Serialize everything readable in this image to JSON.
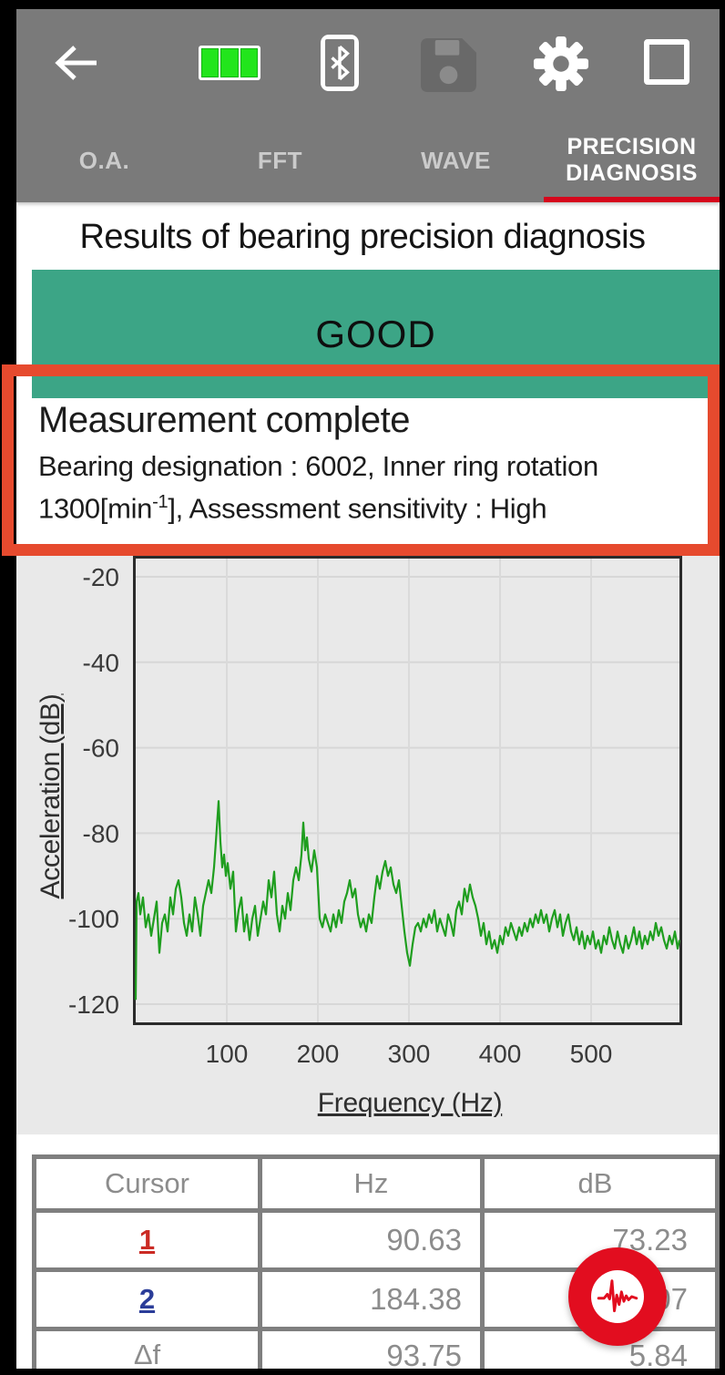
{
  "colors": {
    "toolbar": "#7a7a7a",
    "banner_green": "#3ca586",
    "annotation_red": "#e64a2e",
    "tab_underline": "#d6071c",
    "fab_red": "#e20d1f",
    "cursor1": "#cb2b24",
    "cursor2": "#2b3d99",
    "line_green": "#1f9e1f",
    "battery_green": "#22e51c"
  },
  "toolbar": {
    "icons": [
      "back-arrow",
      "battery-full",
      "bluetooth-connected",
      "save-disabled",
      "settings-gear",
      "square-outline"
    ]
  },
  "tabs": {
    "items": [
      {
        "label": "O.A.",
        "active": false
      },
      {
        "label": "FFT",
        "active": false
      },
      {
        "label": "WAVE",
        "active": false
      },
      {
        "label": "PRECISION\nDIAGNOSIS",
        "active": true
      }
    ]
  },
  "page_title": "Results of bearing precision diagnosis",
  "status_banner": {
    "label": "GOOD"
  },
  "measurement": {
    "title": "Measurement complete",
    "line1": "Bearing designation : 6002, Inner ring rotation",
    "line2_pre": "1300[min",
    "line2_sup": "-1",
    "line2_post": "], Assessment sensitivity : High"
  },
  "chart_data": {
    "type": "line",
    "title": "",
    "xlabel": "Frequency (Hz)",
    "ylabel": "Acceleration (dB)",
    "xlim": [
      0,
      597
    ],
    "ylim": [
      -125,
      -15
    ],
    "xticks": [
      100,
      200,
      300,
      400,
      500
    ],
    "yticks": [
      -20,
      -40,
      -60,
      -80,
      -100,
      -120
    ],
    "grid": true,
    "legend": "none",
    "series": [
      {
        "name": "acceleration-spectrum",
        "points": [
          [
            0,
            -119
          ],
          [
            1,
            -96
          ],
          [
            3,
            -94
          ],
          [
            5,
            -99
          ],
          [
            8,
            -95
          ],
          [
            11,
            -102
          ],
          [
            14,
            -99
          ],
          [
            17,
            -104
          ],
          [
            20,
            -100
          ],
          [
            23,
            -96
          ],
          [
            26,
            -108
          ],
          [
            29,
            -101
          ],
          [
            32,
            -99
          ],
          [
            35,
            -103
          ],
          [
            38,
            -95
          ],
          [
            41,
            -99
          ],
          [
            44,
            -93
          ],
          [
            47,
            -91
          ],
          [
            50,
            -95
          ],
          [
            53,
            -101
          ],
          [
            56,
            -104
          ],
          [
            59,
            -99
          ],
          [
            62,
            -103
          ],
          [
            65,
            -95
          ],
          [
            68,
            -99
          ],
          [
            71,
            -104
          ],
          [
            74,
            -97
          ],
          [
            77,
            -94
          ],
          [
            80,
            -91
          ],
          [
            83,
            -94
          ],
          [
            86,
            -88
          ],
          [
            88,
            -82
          ],
          [
            91,
            -72.5
          ],
          [
            93,
            -82
          ],
          [
            95,
            -88
          ],
          [
            97,
            -85
          ],
          [
            99,
            -90
          ],
          [
            101,
            -87
          ],
          [
            104,
            -93
          ],
          [
            107,
            -89
          ],
          [
            110,
            -103
          ],
          [
            113,
            -98
          ],
          [
            116,
            -95
          ],
          [
            119,
            -103
          ],
          [
            122,
            -99
          ],
          [
            125,
            -105
          ],
          [
            128,
            -100
          ],
          [
            131,
            -97
          ],
          [
            134,
            -104
          ],
          [
            137,
            -100
          ],
          [
            140,
            -96
          ],
          [
            143,
            -99
          ],
          [
            146,
            -91
          ],
          [
            149,
            -95
          ],
          [
            152,
            -89
          ],
          [
            155,
            -99
          ],
          [
            158,
            -103
          ],
          [
            161,
            -97
          ],
          [
            164,
            -100
          ],
          [
            167,
            -94
          ],
          [
            170,
            -98
          ],
          [
            173,
            -91
          ],
          [
            176,
            -88
          ],
          [
            179,
            -91
          ],
          [
            182,
            -85
          ],
          [
            184,
            -77.5
          ],
          [
            186,
            -84
          ],
          [
            188,
            -81
          ],
          [
            190,
            -86
          ],
          [
            193,
            -89
          ],
          [
            196,
            -84
          ],
          [
            199,
            -88
          ],
          [
            202,
            -100
          ],
          [
            205,
            -102
          ],
          [
            208,
            -99
          ],
          [
            211,
            -101
          ],
          [
            214,
            -103
          ],
          [
            217,
            -99
          ],
          [
            220,
            -102
          ],
          [
            223,
            -98
          ],
          [
            226,
            -101
          ],
          [
            229,
            -96
          ],
          [
            232,
            -94
          ],
          [
            235,
            -91
          ],
          [
            238,
            -95
          ],
          [
            241,
            -93
          ],
          [
            244,
            -99
          ],
          [
            247,
            -102
          ],
          [
            250,
            -100
          ],
          [
            253,
            -103
          ],
          [
            256,
            -99
          ],
          [
            259,
            -101
          ],
          [
            262,
            -95
          ],
          [
            265,
            -90
          ],
          [
            268,
            -93
          ],
          [
            271,
            -89
          ],
          [
            274,
            -86.5
          ],
          [
            277,
            -90
          ],
          [
            280,
            -88
          ],
          [
            283,
            -92
          ],
          [
            286,
            -94
          ],
          [
            289,
            -91
          ],
          [
            292,
            -97
          ],
          [
            295,
            -103
          ],
          [
            298,
            -108
          ],
          [
            301,
            -111
          ],
          [
            304,
            -106
          ],
          [
            307,
            -102
          ],
          [
            310,
            -101
          ],
          [
            313,
            -103
          ],
          [
            316,
            -100
          ],
          [
            319,
            -102
          ],
          [
            322,
            -99
          ],
          [
            325,
            -101
          ],
          [
            328,
            -98
          ],
          [
            331,
            -103
          ],
          [
            334,
            -100
          ],
          [
            337,
            -102
          ],
          [
            340,
            -104
          ],
          [
            343,
            -99
          ],
          [
            346,
            -101
          ],
          [
            349,
            -104
          ],
          [
            352,
            -98
          ],
          [
            355,
            -96
          ],
          [
            358,
            -99
          ],
          [
            361,
            -93
          ],
          [
            364,
            -96
          ],
          [
            367,
            -92
          ],
          [
            370,
            -95
          ],
          [
            373,
            -97
          ],
          [
            376,
            -100
          ],
          [
            379,
            -104
          ],
          [
            382,
            -101
          ],
          [
            385,
            -106
          ],
          [
            388,
            -103
          ],
          [
            391,
            -107
          ],
          [
            394,
            -105
          ],
          [
            397,
            -108
          ],
          [
            400,
            -104
          ],
          [
            403,
            -106
          ],
          [
            406,
            -102
          ],
          [
            409,
            -104
          ],
          [
            412,
            -101
          ],
          [
            415,
            -103
          ],
          [
            418,
            -105
          ],
          [
            421,
            -102
          ],
          [
            424,
            -104
          ],
          [
            427,
            -101
          ],
          [
            430,
            -103
          ],
          [
            433,
            -100
          ],
          [
            436,
            -102
          ],
          [
            439,
            -99
          ],
          [
            442,
            -101
          ],
          [
            445,
            -98
          ],
          [
            448,
            -101
          ],
          [
            451,
            -99
          ],
          [
            454,
            -103
          ],
          [
            457,
            -100
          ],
          [
            460,
            -98
          ],
          [
            463,
            -102
          ],
          [
            466,
            -99
          ],
          [
            469,
            -104
          ],
          [
            472,
            -101
          ],
          [
            475,
            -99
          ],
          [
            478,
            -103
          ],
          [
            481,
            -105
          ],
          [
            484,
            -102
          ],
          [
            487,
            -106
          ],
          [
            490,
            -103
          ],
          [
            493,
            -107
          ],
          [
            496,
            -104
          ],
          [
            499,
            -106
          ],
          [
            502,
            -103
          ],
          [
            505,
            -107
          ],
          [
            508,
            -105
          ],
          [
            511,
            -108
          ],
          [
            514,
            -104
          ],
          [
            517,
            -106
          ],
          [
            520,
            -102
          ],
          [
            523,
            -105
          ],
          [
            526,
            -107
          ],
          [
            529,
            -103
          ],
          [
            532,
            -106
          ],
          [
            535,
            -108
          ],
          [
            538,
            -104
          ],
          [
            541,
            -107
          ],
          [
            544,
            -105
          ],
          [
            547,
            -102
          ],
          [
            550,
            -106
          ],
          [
            553,
            -103
          ],
          [
            556,
            -107
          ],
          [
            559,
            -104
          ],
          [
            562,
            -106
          ],
          [
            565,
            -103
          ],
          [
            568,
            -105
          ],
          [
            571,
            -101
          ],
          [
            574,
            -104
          ],
          [
            577,
            -102
          ],
          [
            580,
            -105
          ],
          [
            583,
            -107
          ],
          [
            586,
            -104
          ],
          [
            589,
            -106
          ],
          [
            592,
            -103
          ],
          [
            595,
            -107
          ],
          [
            597,
            -105
          ]
        ]
      }
    ]
  },
  "cursor_table": {
    "headers": [
      "Cursor",
      "Hz",
      "dB"
    ],
    "rows": [
      {
        "cursor": "1",
        "hz": "90.63",
        "db": "73.23"
      },
      {
        "cursor": "2",
        "hz": "184.38",
        "db": "79.07"
      },
      {
        "cursor": "Δf",
        "hz": "93.75",
        "db": "5.84"
      }
    ]
  },
  "fab": {
    "icon": "vibration-waveform"
  }
}
